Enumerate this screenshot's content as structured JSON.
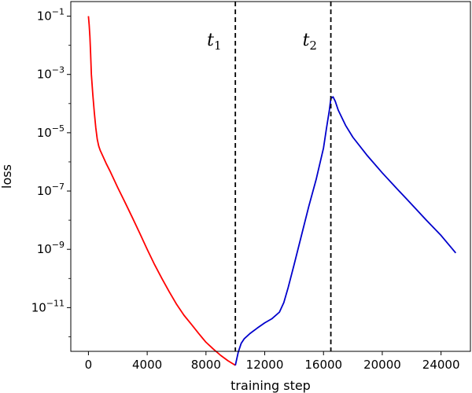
{
  "chart_data": {
    "type": "line",
    "title": "",
    "xlabel": "training step",
    "ylabel": "loss",
    "xlim": [
      -1200,
      26000
    ],
    "ylim_log10": [
      -12.5,
      -0.5
    ],
    "yscale": "log",
    "grid": false,
    "x_ticks": [
      0,
      4000,
      8000,
      12000,
      16000,
      20000,
      24000
    ],
    "x_tick_labels": [
      "0",
      "4000",
      "8000",
      "12000",
      "16000",
      "20000",
      "24000"
    ],
    "y_ticks_log10": [
      -1,
      -3,
      -5,
      -7,
      -9,
      -11
    ],
    "y_tick_labels": [
      {
        "base": "10",
        "exp": "−1"
      },
      {
        "base": "10",
        "exp": "−3"
      },
      {
        "base": "10",
        "exp": "−5"
      },
      {
        "base": "10",
        "exp": "−7"
      },
      {
        "base": "10",
        "exp": "−9"
      },
      {
        "base": "10",
        "exp": "−11"
      }
    ],
    "vlines": [
      {
        "x": 10000,
        "label_main": "t",
        "label_sub": "1",
        "style": "dashed"
      },
      {
        "x": 16500,
        "label_main": "t",
        "label_sub": "2",
        "style": "dashed"
      }
    ],
    "series": [
      {
        "color": "#ff0000",
        "x": [
          0,
          50,
          100,
          150,
          200,
          300,
          400,
          500,
          600,
          700,
          800,
          1000,
          1200,
          1500,
          2000,
          2500,
          3000,
          3500,
          4000,
          4500,
          5000,
          5500,
          6000,
          6500,
          7000,
          7500,
          8000,
          8500,
          9000,
          9500,
          10000
        ],
        "y": [
          0.1,
          0.05,
          0.02,
          0.005,
          0.001,
          0.0002,
          5e-05,
          1.5e-05,
          6e-06,
          3.5e-06,
          2.5e-06,
          1.5e-06,
          9e-07,
          4.5e-07,
          1.3e-07,
          4e-08,
          1.2e-08,
          3.5e-09,
          1e-09,
          3e-10,
          1e-10,
          3.5e-11,
          1.3e-11,
          5.5e-12,
          2.7e-12,
          1.3e-12,
          6.5e-13,
          3.8e-13,
          2.3e-13,
          1.5e-13,
          1.05e-13
        ]
      },
      {
        "color": "#0000cc",
        "x": [
          10000,
          10200,
          10400,
          10600,
          11000,
          11500,
          12000,
          12500,
          13000,
          13300,
          13600,
          14000,
          14500,
          15000,
          15500,
          16000,
          16200,
          16400,
          16500,
          16650,
          16800,
          17000,
          17500,
          18000,
          19000,
          20000,
          21000,
          22000,
          23000,
          24000,
          25000
        ],
        "y": [
          1.05e-13,
          3e-13,
          6e-13,
          8.5e-13,
          1.3e-12,
          2e-12,
          3e-12,
          4.2e-12,
          7e-12,
          1.5e-11,
          5e-11,
          3e-10,
          3e-09,
          3e-08,
          2.5e-07,
          3e-06,
          1.4e-05,
          6e-05,
          0.00015,
          0.00017,
          0.00012,
          6e-05,
          1.8e-05,
          7e-06,
          1.6e-06,
          4.2e-07,
          1.2e-07,
          3.5e-08,
          1e-08,
          3e-09,
          7.5e-10
        ]
      }
    ]
  }
}
